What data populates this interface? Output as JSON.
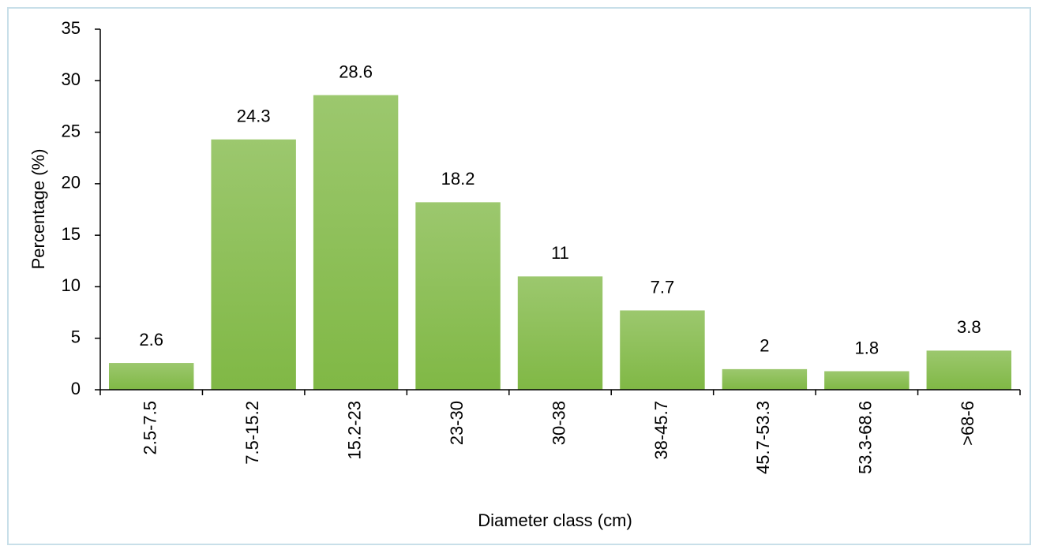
{
  "chart_data": {
    "type": "bar",
    "x_label": "Diameter class (cm)",
    "y_label": "Percentage (%)",
    "categories": [
      "2.5-7.5",
      "7.5-15.2",
      "15.2-23",
      "23-30",
      "30-38",
      "38-45.7",
      "45.7-53.3",
      "53.3-68.6",
      ">68-6"
    ],
    "values": [
      2.6,
      24.3,
      28.6,
      18.2,
      11,
      7.7,
      2,
      1.8,
      3.8
    ],
    "color": "#80b845",
    "ylim": [
      0,
      35
    ],
    "yticks": [
      0,
      5,
      10,
      15,
      20,
      25,
      30,
      35
    ],
    "grid": false
  }
}
